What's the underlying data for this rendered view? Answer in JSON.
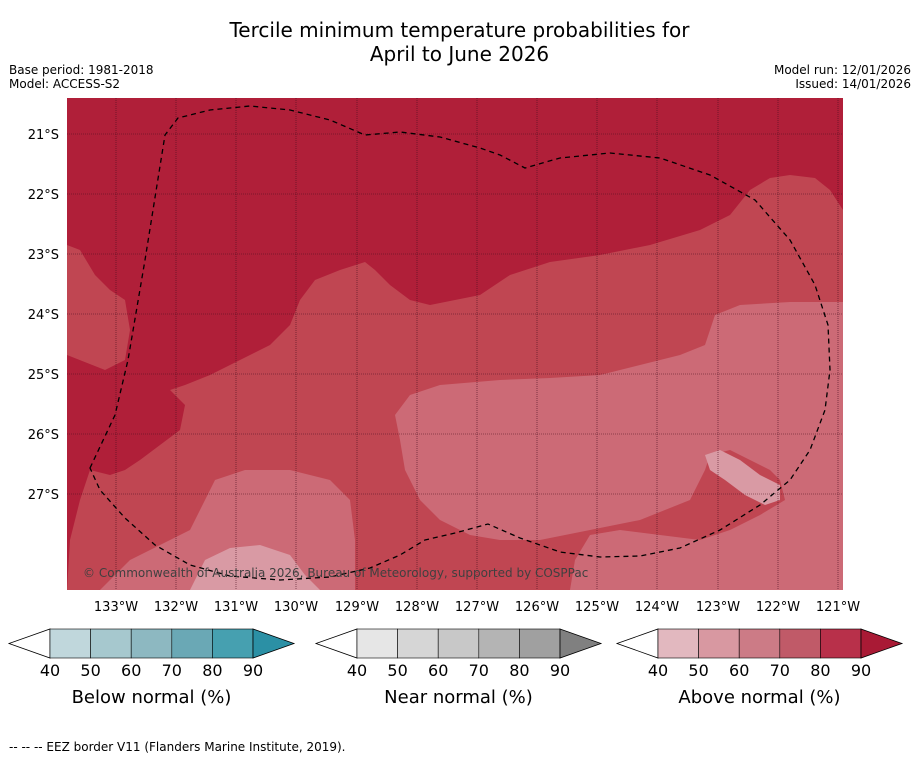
{
  "title": {
    "line1": "Tercile minimum temperature probabilities for",
    "line2": "April to June 2026"
  },
  "meta": {
    "base_period": "Base period: 1981-2018",
    "model": "Model: ACCESS-S2",
    "model_run": "Model run: 12/01/2026",
    "issued": "Issued: 14/01/2026"
  },
  "map": {
    "lat_labels": [
      "21°S",
      "22°S",
      "23°S",
      "24°S",
      "25°S",
      "26°S",
      "27°S"
    ],
    "lon_labels": [
      "133°W",
      "132°W",
      "131°W",
      "130°W",
      "129°W",
      "128°W",
      "127°W",
      "126°W",
      "125°W",
      "124°W",
      "123°W",
      "122°W",
      "121°W"
    ],
    "copyright": "© Commonwealth of Australia 2026, Bureau of Meteorology, supported by COSPPac",
    "colors": {
      "above_80": "#b01f39",
      "above_70": "#c04652",
      "above_60": "#cc6a76",
      "above_50": "#d99aa4"
    }
  },
  "colorbars": [
    {
      "label": "Below normal (%)",
      "ticks": [
        "40",
        "50",
        "60",
        "70",
        "80",
        "90"
      ],
      "colors": [
        "#c0d7dc",
        "#a6c8ce",
        "#8db8c1",
        "#6aa8b5",
        "#46a0b0",
        "#2b90a5"
      ]
    },
    {
      "label": "Near normal (%)",
      "ticks": [
        "40",
        "50",
        "60",
        "70",
        "80",
        "90"
      ],
      "colors": [
        "#e6e6e6",
        "#d6d6d6",
        "#c8c8c8",
        "#b4b4b4",
        "#a0a0a0",
        "#808080"
      ]
    },
    {
      "label": "Above normal (%)",
      "ticks": [
        "40",
        "50",
        "60",
        "70",
        "80",
        "90"
      ],
      "colors": [
        "#e2b8bf",
        "#d898a1",
        "#cc7b86",
        "#c05a68",
        "#b8304a",
        "#a91a35"
      ]
    }
  ],
  "footnote": "--  --  -- EEZ border V11 (Flanders Marine Institute, 2019)."
}
